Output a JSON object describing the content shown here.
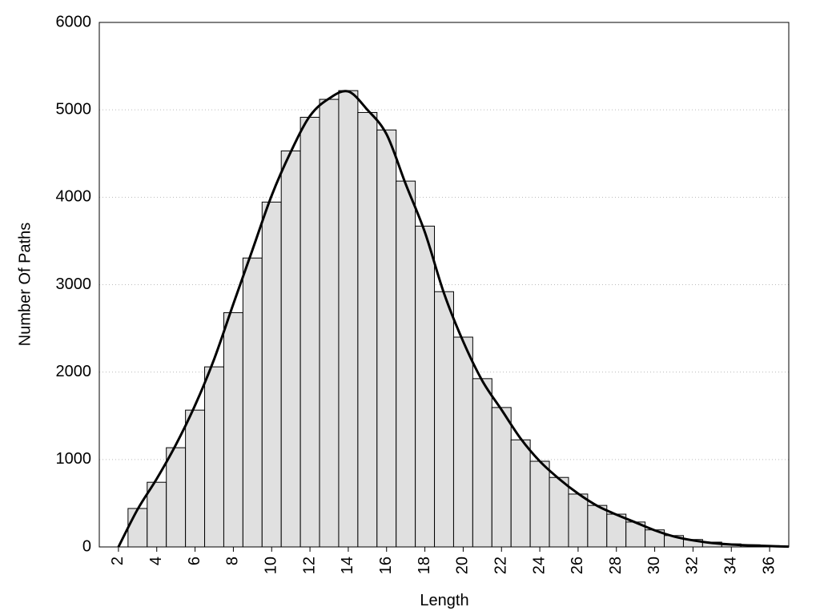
{
  "chart_data": {
    "type": "histogram",
    "xlabel": "Length",
    "ylabel": "Number Of Paths",
    "bins": [
      2.5,
      3.5,
      4.5,
      5.5,
      6.5,
      7.5,
      8.5,
      9.5,
      10.5,
      11.5,
      12.5,
      13.5,
      14.5,
      15.5,
      16.5,
      17.5,
      18.5,
      19.5,
      20.5,
      21.5,
      22.5,
      23.5,
      24.5,
      25.5,
      26.5,
      27.5,
      28.5,
      29.5,
      30.5,
      31.5,
      32.5,
      33.5,
      34.5,
      35.5,
      36.5
    ],
    "counts": [
      440,
      740,
      1135,
      1565,
      2060,
      2680,
      3305,
      3945,
      4530,
      4915,
      5120,
      5220,
      4970,
      4770,
      4185,
      3670,
      2920,
      2400,
      1925,
      1595,
      1225,
      980,
      795,
      605,
      475,
      375,
      285,
      195,
      130,
      85,
      55,
      35,
      25,
      15
    ],
    "color": "#e0e0e0",
    "curve": {
      "color": "#000000",
      "x": [
        2,
        3,
        4,
        5,
        6,
        7,
        8,
        9,
        10,
        11,
        12,
        13,
        14,
        15,
        16,
        17,
        18,
        19,
        20,
        21,
        22,
        23,
        24,
        25,
        26,
        27,
        28,
        29,
        30,
        31,
        32,
        33,
        34,
        35,
        36,
        37
      ],
      "values": [
        0,
        430,
        780,
        1170,
        1620,
        2150,
        2780,
        3400,
        4020,
        4520,
        4930,
        5130,
        5210,
        5000,
        4720,
        4150,
        3600,
        2900,
        2350,
        1900,
        1570,
        1240,
        980,
        780,
        610,
        470,
        370,
        280,
        190,
        120,
        75,
        45,
        28,
        17,
        10,
        3
      ]
    },
    "xlim": [
      1,
      37
    ],
    "ylim": [
      0,
      6000
    ],
    "xticks": [
      2,
      4,
      6,
      8,
      10,
      12,
      14,
      16,
      18,
      20,
      22,
      24,
      26,
      28,
      30,
      32,
      34,
      36
    ],
    "yticks": [
      0,
      1000,
      2000,
      3000,
      4000,
      5000,
      6000
    ],
    "grid": true
  }
}
